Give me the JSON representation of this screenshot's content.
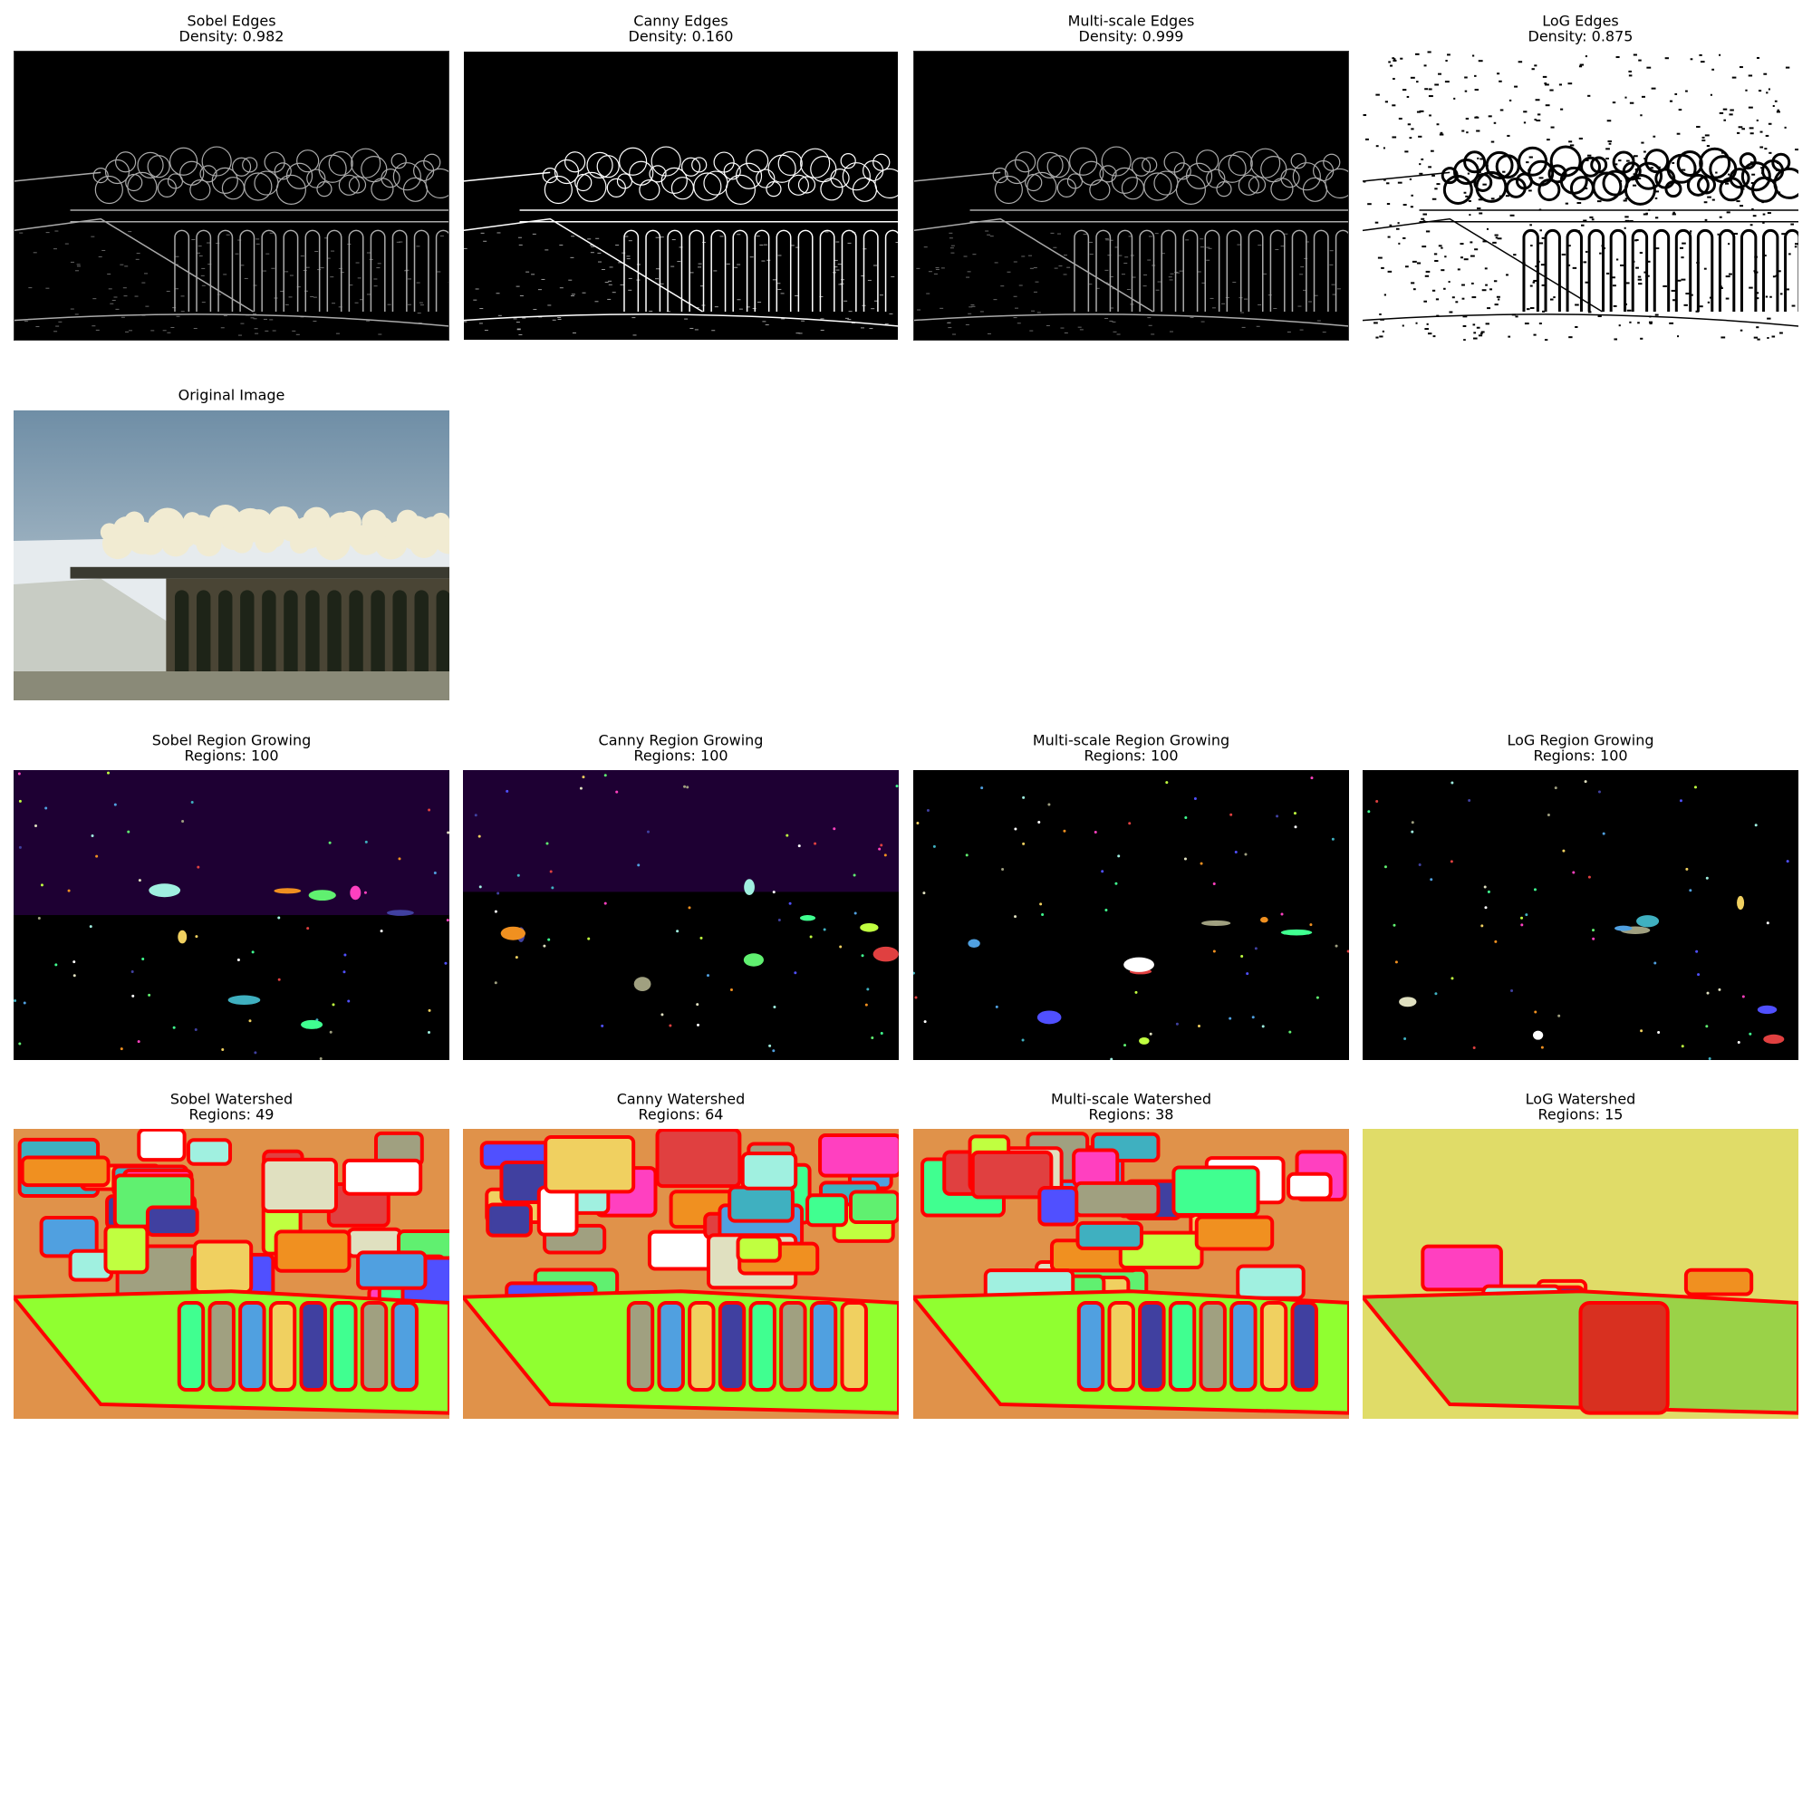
{
  "rows": [
    [
      {
        "title": "Sobel Edges",
        "subtitle": "Density: 0.982"
      },
      {
        "title": "Canny Edges",
        "subtitle": "Density: 0.160"
      },
      {
        "title": "Multi-scale Edges",
        "subtitle": "Density: 0.999"
      },
      {
        "title": "LoG Edges",
        "subtitle": "Density: 0.875"
      }
    ],
    [
      {
        "title": "Original Image"
      }
    ],
    [
      {
        "title": "Sobel Region Growing",
        "subtitle": "Regions: 100"
      },
      {
        "title": "Canny Region Growing",
        "subtitle": "Regions: 100"
      },
      {
        "title": "Multi-scale Region Growing",
        "subtitle": "Regions: 100"
      },
      {
        "title": "LoG Region Growing",
        "subtitle": "Regions: 100"
      }
    ],
    [
      {
        "title": "Sobel Watershed",
        "subtitle": "Regions: 49"
      },
      {
        "title": "Canny Watershed",
        "subtitle": "Regions: 64"
      },
      {
        "title": "Multi-scale Watershed",
        "subtitle": "Regions: 38"
      },
      {
        "title": "LoG Watershed",
        "subtitle": "Regions: 15"
      }
    ]
  ]
}
